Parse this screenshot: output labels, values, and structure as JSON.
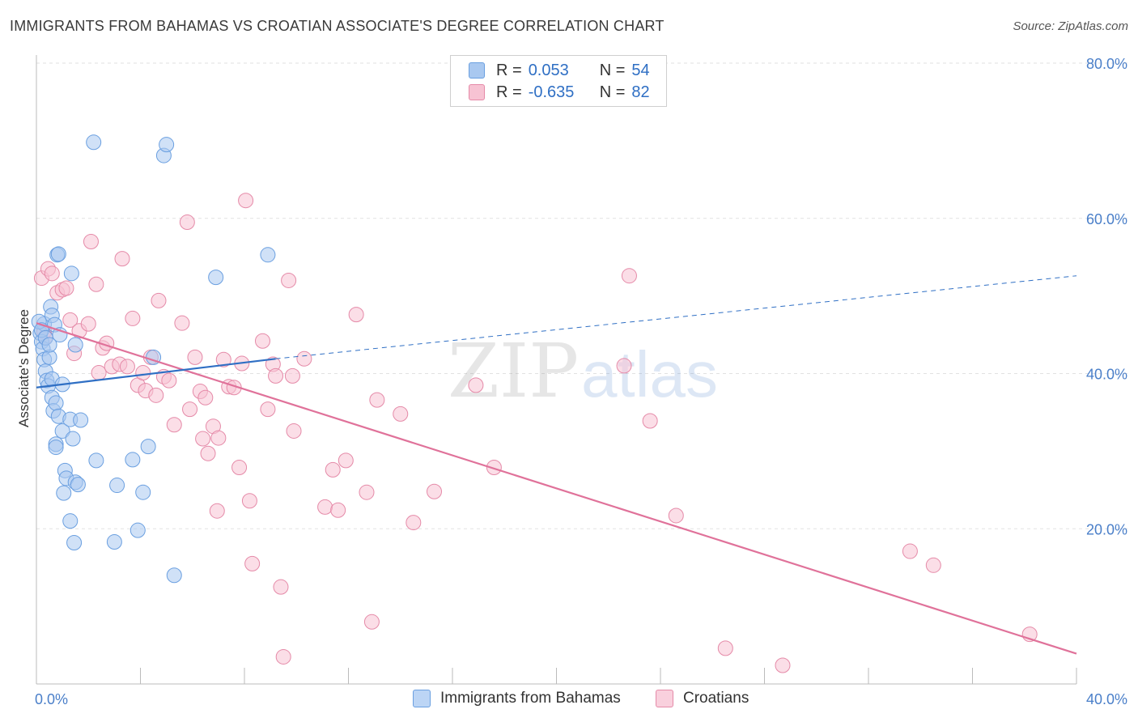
{
  "header": {
    "title": "IMMIGRANTS FROM BAHAMAS VS CROATIAN ASSOCIATE'S DEGREE CORRELATION CHART",
    "source": "Source: ZipAtlas.com"
  },
  "watermark": {
    "zip": "ZIP",
    "atlas": "atlas"
  },
  "legend": {
    "rows": [
      {
        "r_label": "R =",
        "r_value": "0.053",
        "n_label": "N =",
        "n_value": "54",
        "color": "#a9c8f0",
        "border": "#6a9fe0"
      },
      {
        "r_label": "R =",
        "r_value": "-0.635",
        "n_label": "N =",
        "n_value": "82",
        "color": "#f7c3d3",
        "border": "#e58aa8"
      }
    ]
  },
  "bottom_legend": {
    "items": [
      {
        "label": "Immigrants from Bahamas",
        "color": "#bcd5f5",
        "border": "#6a9fe0"
      },
      {
        "label": "Croatians",
        "color": "#f9d0dd",
        "border": "#e58aa8"
      }
    ]
  },
  "colors": {
    "blue_fill": "#a9c8f0",
    "blue_stroke": "#6a9fe0",
    "blue_line": "#2f6fc4",
    "pink_fill": "#f7c3d3",
    "pink_stroke": "#e58aa8",
    "pink_line": "#e0729a",
    "grid": "#e2e2e2",
    "tick_text": "#4a7fc9"
  },
  "chart_data": {
    "type": "scatter",
    "title": "IMMIGRANTS FROM BAHAMAS VS CROATIAN ASSOCIATE'S DEGREE CORRELATION CHART",
    "xlabel": "",
    "ylabel": "Associate's Degree",
    "xlim": [
      0,
      40
    ],
    "ylim": [
      0,
      80
    ],
    "x_ticks": [
      0,
      40
    ],
    "x_tick_labels": [
      "0.0%",
      "40.0%"
    ],
    "y_ticks": [
      20,
      40,
      60,
      80
    ],
    "y_tick_labels": [
      "20.0%",
      "40.0%",
      "60.0%",
      "80.0%"
    ],
    "grid": true,
    "legend_position": "top-center",
    "series": [
      {
        "name": "Immigrants from Bahamas",
        "trend": {
          "x": [
            0,
            9.2
          ],
          "y": [
            38.2,
            41.9
          ],
          "dashed_to": [
            40,
            52.6
          ]
        },
        "points": [
          [
            0.15,
            45.2
          ],
          [
            0.2,
            44.1
          ],
          [
            0.25,
            43.2
          ],
          [
            0.3,
            41.8
          ],
          [
            0.3,
            46.4
          ],
          [
            0.35,
            40.3
          ],
          [
            0.4,
            39.1
          ],
          [
            0.45,
            38.4
          ],
          [
            0.5,
            42.1
          ],
          [
            0.55,
            48.6
          ],
          [
            0.6,
            47.5
          ],
          [
            0.6,
            39.3
          ],
          [
            0.6,
            36.9
          ],
          [
            0.65,
            35.2
          ],
          [
            0.7,
            46.3
          ],
          [
            0.75,
            36.2
          ],
          [
            0.75,
            30.9
          ],
          [
            0.75,
            30.5
          ],
          [
            0.8,
            55.3
          ],
          [
            0.85,
            55.4
          ],
          [
            0.85,
            34.5
          ],
          [
            0.9,
            45.0
          ],
          [
            1.0,
            38.6
          ],
          [
            1.0,
            32.6
          ],
          [
            1.05,
            24.6
          ],
          [
            1.1,
            27.5
          ],
          [
            1.15,
            26.5
          ],
          [
            1.3,
            34.1
          ],
          [
            1.3,
            21.0
          ],
          [
            1.35,
            52.9
          ],
          [
            1.4,
            31.6
          ],
          [
            1.45,
            18.2
          ],
          [
            1.5,
            26.0
          ],
          [
            1.5,
            43.7
          ],
          [
            1.6,
            25.7
          ],
          [
            1.7,
            34.0
          ],
          [
            2.2,
            69.8
          ],
          [
            2.3,
            28.8
          ],
          [
            3.0,
            18.3
          ],
          [
            3.1,
            25.6
          ],
          [
            3.7,
            28.9
          ],
          [
            3.9,
            19.8
          ],
          [
            4.1,
            24.7
          ],
          [
            4.3,
            30.6
          ],
          [
            4.5,
            42.1
          ],
          [
            4.9,
            68.1
          ],
          [
            5.0,
            69.5
          ],
          [
            5.3,
            14.0
          ],
          [
            6.9,
            52.4
          ],
          [
            8.9,
            55.3
          ],
          [
            0.1,
            46.7
          ],
          [
            0.2,
            45.6
          ],
          [
            0.35,
            44.6
          ],
          [
            0.5,
            43.7
          ]
        ]
      },
      {
        "name": "Croatians",
        "trend": {
          "x": [
            0,
            40
          ],
          "y": [
            46.5,
            3.9
          ]
        },
        "points": [
          [
            0.2,
            52.3
          ],
          [
            0.3,
            45.4
          ],
          [
            0.35,
            44.7
          ],
          [
            0.45,
            53.5
          ],
          [
            0.6,
            52.9
          ],
          [
            0.8,
            50.4
          ],
          [
            1.0,
            50.8
          ],
          [
            1.15,
            51.0
          ],
          [
            1.3,
            46.9
          ],
          [
            1.45,
            42.6
          ],
          [
            1.65,
            45.5
          ],
          [
            2.0,
            46.4
          ],
          [
            2.1,
            57.0
          ],
          [
            2.3,
            51.5
          ],
          [
            2.4,
            40.1
          ],
          [
            2.55,
            43.3
          ],
          [
            2.7,
            43.9
          ],
          [
            2.9,
            40.9
          ],
          [
            3.2,
            41.2
          ],
          [
            3.3,
            54.8
          ],
          [
            3.5,
            40.9
          ],
          [
            3.7,
            47.1
          ],
          [
            3.9,
            38.5
          ],
          [
            4.1,
            40.1
          ],
          [
            4.2,
            37.8
          ],
          [
            4.4,
            42.1
          ],
          [
            4.6,
            37.2
          ],
          [
            4.7,
            49.4
          ],
          [
            4.9,
            39.6
          ],
          [
            5.1,
            39.1
          ],
          [
            5.3,
            33.4
          ],
          [
            5.6,
            46.5
          ],
          [
            5.8,
            59.5
          ],
          [
            5.9,
            35.4
          ],
          [
            6.1,
            42.1
          ],
          [
            6.3,
            37.7
          ],
          [
            6.4,
            31.6
          ],
          [
            6.5,
            36.9
          ],
          [
            6.6,
            29.7
          ],
          [
            6.8,
            33.2
          ],
          [
            6.95,
            22.3
          ],
          [
            7.0,
            31.7
          ],
          [
            7.2,
            41.8
          ],
          [
            7.4,
            38.3
          ],
          [
            7.6,
            38.2
          ],
          [
            7.8,
            27.9
          ],
          [
            7.9,
            41.3
          ],
          [
            8.05,
            62.3
          ],
          [
            8.2,
            23.6
          ],
          [
            8.3,
            15.5
          ],
          [
            8.7,
            44.2
          ],
          [
            8.9,
            35.4
          ],
          [
            9.1,
            41.2
          ],
          [
            9.2,
            39.7
          ],
          [
            9.4,
            12.5
          ],
          [
            9.5,
            3.5
          ],
          [
            9.7,
            52.0
          ],
          [
            9.85,
            39.7
          ],
          [
            9.9,
            32.6
          ],
          [
            10.3,
            41.9
          ],
          [
            11.1,
            22.8
          ],
          [
            11.4,
            27.6
          ],
          [
            11.6,
            22.4
          ],
          [
            11.9,
            28.8
          ],
          [
            12.3,
            47.6
          ],
          [
            12.7,
            24.7
          ],
          [
            12.9,
            8.0
          ],
          [
            13.1,
            36.6
          ],
          [
            14.0,
            34.8
          ],
          [
            14.5,
            20.8
          ],
          [
            15.3,
            24.8
          ],
          [
            16.9,
            38.5
          ],
          [
            17.6,
            27.9
          ],
          [
            22.6,
            41.0
          ],
          [
            22.8,
            52.6
          ],
          [
            23.6,
            33.9
          ],
          [
            24.6,
            21.7
          ],
          [
            26.5,
            4.6
          ],
          [
            28.7,
            2.4
          ],
          [
            33.6,
            17.1
          ],
          [
            34.5,
            15.3
          ],
          [
            38.2,
            6.4
          ]
        ]
      }
    ]
  }
}
